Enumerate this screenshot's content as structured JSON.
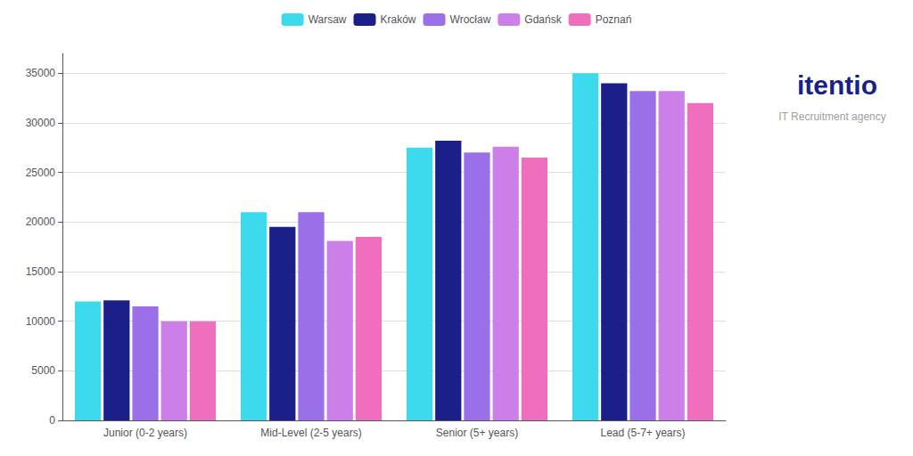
{
  "chart_data": {
    "type": "bar",
    "categories": [
      "Junior (0-2 years)",
      "Mid-Level (2-5 years)",
      "Senior (5+ years)",
      "Lead (5-7+ years)"
    ],
    "series": [
      {
        "name": "Warsaw",
        "color": "#3DD9EC",
        "values": [
          12000,
          21000,
          27500,
          35000
        ]
      },
      {
        "name": "Kraków",
        "color": "#1B1F8A",
        "values": [
          12100,
          19500,
          28200,
          34000
        ]
      },
      {
        "name": "Wrocław",
        "color": "#9B6FE8",
        "values": [
          11500,
          21000,
          27000,
          33200
        ]
      },
      {
        "name": "Gdańsk",
        "color": "#CC7FE8",
        "values": [
          10000,
          18100,
          27600,
          33200
        ]
      },
      {
        "name": "Poznań",
        "color": "#F06EBE",
        "values": [
          10000,
          18500,
          26500,
          32000
        ]
      }
    ],
    "ylim": [
      0,
      37000
    ],
    "yticks": [
      0,
      5000,
      10000,
      15000,
      20000,
      25000,
      30000,
      35000
    ],
    "grid": true,
    "legend": "top",
    "annotations": [
      "itentio",
      "IT Recruitment agency"
    ]
  }
}
